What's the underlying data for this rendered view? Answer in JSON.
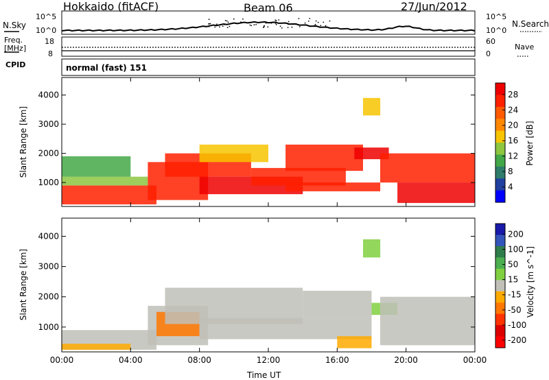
{
  "header": {
    "title": "Hokkaido (fitACF)",
    "beam": "Beam 06",
    "date": "27/Jun/2012"
  },
  "summary_panel": {
    "nsky_label": "N.Sky",
    "nsearch_label": "N.Search",
    "nsky_ticks": [
      "10^5",
      "10^0"
    ],
    "nsearch_ticks": [
      "10^5",
      "10^0"
    ],
    "freq_label": "Freq.",
    "freq_unit": "[MHz]",
    "freq_ticks": [
      "18",
      "8"
    ],
    "nave_label": "Nave",
    "nave_ticks": [
      "60",
      "0"
    ],
    "cpid_label": "CPID",
    "cpid_value": "normal (fast) 151"
  },
  "colors": {
    "power_scale": [
      "#0000ff",
      "#2040a0",
      "#2e7d6a",
      "#43a847",
      "#8dc63f",
      "#f7c400",
      "#ff8800",
      "#ff5a00",
      "#ff2000",
      "#ee0000"
    ],
    "velocity_scale": [
      "#1a1aaa",
      "#3355bb",
      "#2e7d4a",
      "#4caf50",
      "#80d040",
      "#c0c0b8",
      "#ffaa00",
      "#ff7700",
      "#ff3300",
      "#dd0000",
      "#ff0000"
    ]
  },
  "chart_data": [
    {
      "type": "heatmap",
      "name": "power",
      "xlabel": "",
      "ylabel": "Slant Range [km]",
      "x_ticks": [
        "00:00",
        "04:00",
        "08:00",
        "12:00",
        "16:00",
        "20:00",
        "00:00"
      ],
      "y_ticks": [
        1000,
        2000,
        3000,
        4000
      ],
      "ylim": [
        180,
        4600
      ],
      "colorbar_label": "Power [dB]",
      "colorbar_ticks": [
        4,
        8,
        12,
        16,
        20,
        24,
        28
      ],
      "colorbar_range": [
        0,
        31
      ],
      "bands": [
        {
          "t0": 0.0,
          "t1": 5.5,
          "r0": 250,
          "r1": 900,
          "value": 27
        },
        {
          "t0": 0.0,
          "t1": 5.0,
          "r0": 900,
          "r1": 1200,
          "value": 14
        },
        {
          "t0": 0.0,
          "t1": 4.0,
          "r0": 1200,
          "r1": 1900,
          "value": 10
        },
        {
          "t0": 5.0,
          "t1": 8.5,
          "r0": 400,
          "r1": 1700,
          "value": 26
        },
        {
          "t0": 6.0,
          "t1": 11.0,
          "r0": 1200,
          "r1": 2000,
          "value": 27
        },
        {
          "t0": 8.0,
          "t1": 12.0,
          "r0": 1700,
          "r1": 2300,
          "value": 18
        },
        {
          "t0": 8.0,
          "t1": 14.0,
          "r0": 600,
          "r1": 1200,
          "value": 28
        },
        {
          "t0": 11.0,
          "t1": 16.5,
          "r0": 900,
          "r1": 1500,
          "value": 26
        },
        {
          "t0": 13.0,
          "t1": 17.5,
          "r0": 1400,
          "r1": 2300,
          "value": 25
        },
        {
          "t0": 13.0,
          "t1": 18.5,
          "r0": 700,
          "r1": 1000,
          "value": 27
        },
        {
          "t0": 17.0,
          "t1": 19.0,
          "r0": 1800,
          "r1": 2200,
          "value": 28
        },
        {
          "t0": 18.5,
          "t1": 24.0,
          "r0": 1000,
          "r1": 2000,
          "value": 27
        },
        {
          "t0": 19.5,
          "t1": 24.0,
          "r0": 300,
          "r1": 1000,
          "value": 28
        },
        {
          "t0": 17.5,
          "t1": 18.5,
          "r0": 3300,
          "r1": 3900,
          "value": 17
        }
      ]
    },
    {
      "type": "heatmap",
      "name": "velocity",
      "xlabel": "Time UT",
      "ylabel": "Slant Range [km]",
      "x_ticks": [
        "00:00",
        "04:00",
        "08:00",
        "12:00",
        "16:00",
        "20:00",
        "00:00"
      ],
      "y_ticks": [
        1000,
        2000,
        3000,
        4000
      ],
      "ylim": [
        180,
        4600
      ],
      "colorbar_label": "Velocity [m s^-1]",
      "colorbar_ticks": [
        200,
        100,
        50,
        15,
        -15,
        -50,
        -100,
        -200
      ],
      "colorbar_range": [
        -250,
        250
      ],
      "bands": [
        {
          "t0": 0.0,
          "t1": 5.5,
          "r0": 250,
          "r1": 900,
          "value": 0
        },
        {
          "t0": 0.0,
          "t1": 4.0,
          "r0": 250,
          "r1": 450,
          "value": -60
        },
        {
          "t0": 5.0,
          "t1": 8.5,
          "r0": 400,
          "r1": 1700,
          "value": 0
        },
        {
          "t0": 5.5,
          "t1": 8.0,
          "r0": 700,
          "r1": 1500,
          "value": -70
        },
        {
          "t0": 6.0,
          "t1": 14.0,
          "r0": 1100,
          "r1": 2300,
          "value": 0
        },
        {
          "t0": 8.0,
          "t1": 18.0,
          "r0": 600,
          "r1": 1300,
          "value": 0
        },
        {
          "t0": 14.0,
          "t1": 18.0,
          "r0": 1300,
          "r1": 2200,
          "value": 0
        },
        {
          "t0": 16.0,
          "t1": 18.0,
          "r0": 300,
          "r1": 700,
          "value": -60
        },
        {
          "t0": 18.0,
          "t1": 19.5,
          "r0": 1400,
          "r1": 1800,
          "value": 40
        },
        {
          "t0": 18.5,
          "t1": 24.0,
          "r0": 400,
          "r1": 2000,
          "value": 0
        },
        {
          "t0": 17.5,
          "t1": 18.5,
          "r0": 3300,
          "r1": 3900,
          "value": 40
        }
      ]
    }
  ]
}
